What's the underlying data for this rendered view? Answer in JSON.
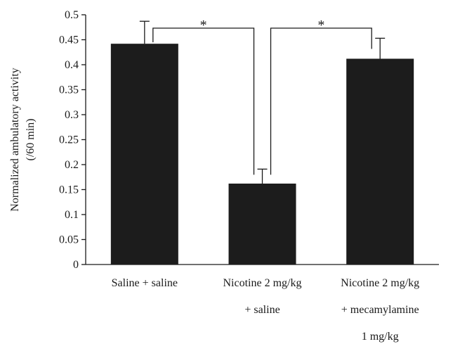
{
  "chart_data": {
    "type": "bar",
    "categories": [
      [
        "Saline + saline"
      ],
      [
        "Nicotine 2 mg/kg",
        "+ saline"
      ],
      [
        "Nicotine 2 mg/kg",
        "+ mecamylamine",
        "1 mg/kg"
      ]
    ],
    "values": [
      0.442,
      0.162,
      0.412
    ],
    "errors": [
      0.045,
      0.029,
      0.041
    ],
    "ylabel_lines": [
      "Normalized ambulatory activity",
      "(/60 min)"
    ],
    "ylim": [
      0,
      0.5
    ],
    "yticks": [
      0,
      0.05,
      0.1,
      0.15,
      0.2,
      0.25,
      0.3,
      0.35,
      0.4,
      0.45,
      0.5
    ],
    "ytick_labels": [
      "0",
      "0.05",
      "0.1",
      "0.15",
      "0.2",
      "0.25",
      "0.3",
      "0.35",
      "0.4",
      "0.45",
      "0.5"
    ],
    "bar_color": "#1c1c1c",
    "significance": [
      {
        "from": 0,
        "to": 1,
        "label": "*"
      },
      {
        "from": 1,
        "to": 2,
        "label": "*"
      }
    ],
    "grid": false,
    "legend": "none"
  }
}
